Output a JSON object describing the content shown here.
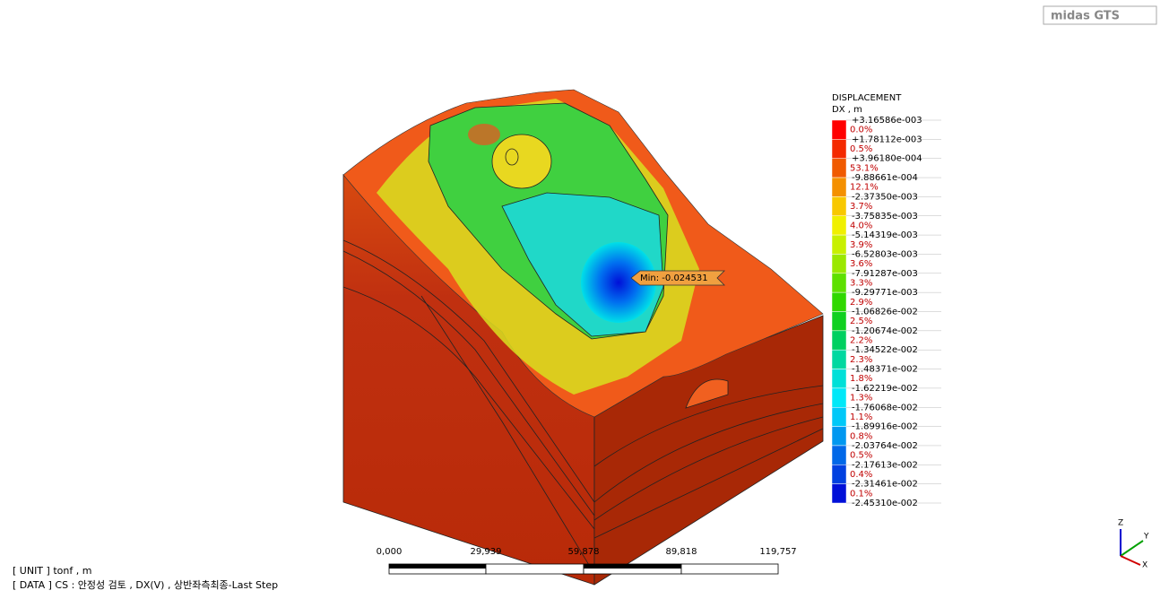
{
  "logo": "midas GTS",
  "legend": {
    "title": "DISPLACEMENT",
    "subtitle": "DX , m",
    "values": [
      "+3.16586e-003",
      "+1.78112e-003",
      "+3.96180e-004",
      "-9.88661e-004",
      "-2.37350e-003",
      "-3.75835e-003",
      "-5.14319e-003",
      "-6.52803e-003",
      "-7.91287e-003",
      "-9.29771e-003",
      "-1.06826e-002",
      "-1.20674e-002",
      "-1.34522e-002",
      "-1.48371e-002",
      "-1.62219e-002",
      "-1.76068e-002",
      "-1.89916e-002",
      "-2.03764e-002",
      "-2.17613e-002",
      "-2.31461e-002",
      "-2.45310e-002"
    ],
    "percents": [
      "0.0%",
      "0.5%",
      "53.1%",
      "12.1%",
      "3.7%",
      "4.0%",
      "3.9%",
      "3.6%",
      "3.3%",
      "2.9%",
      "2.5%",
      "2.2%",
      "2.3%",
      "1.8%",
      "1.3%",
      "1.1%",
      "0.8%",
      "0.5%",
      "0.4%",
      "0.1%"
    ],
    "colors": [
      "#ff0000",
      "#f42a00",
      "#f05a00",
      "#f49000",
      "#f8c800",
      "#f0f000",
      "#c8f000",
      "#9ae800",
      "#5ee000",
      "#30d800",
      "#10d020",
      "#00d060",
      "#00d8a0",
      "#00e0d8",
      "#00e8f8",
      "#00c8f8",
      "#0098f0",
      "#0068e8",
      "#0040e0",
      "#0010d8"
    ]
  },
  "min_label": "Min: -0.024531",
  "scale_bar": [
    "0,000",
    "29,939",
    "59,878",
    "89,818",
    "119,757"
  ],
  "info": {
    "unit": "[ UNIT ]  tonf  ,  m",
    "data": "[ DATA ]  CS : 안정성 검토  ,  DX(V)  ,  상반좌측최종-Last Step"
  },
  "axes": [
    "Z",
    "Y",
    "X"
  ]
}
